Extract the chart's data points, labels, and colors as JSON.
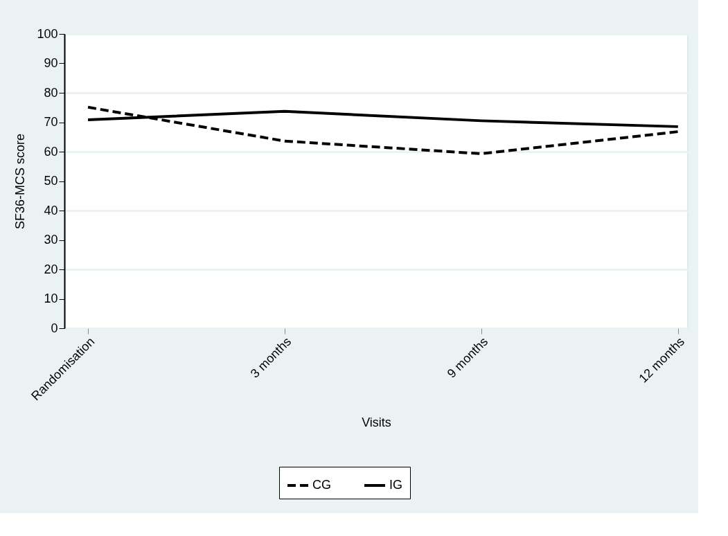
{
  "chart_data": {
    "type": "line",
    "xlabel": "Visits",
    "ylabel": "SF36-MCS score",
    "categories": [
      "Randomisation",
      "3 months",
      "9 months",
      "12 months"
    ],
    "series": [
      {
        "name": "CG",
        "color": "#000000",
        "line_style": "dashed",
        "values": [
          75.1,
          63.6,
          59.3,
          66.8
        ]
      },
      {
        "name": "IG",
        "color": "#000000",
        "line_style": "solid",
        "values": [
          70.8,
          73.7,
          70.5,
          68.5
        ]
      }
    ],
    "ylim": [
      0,
      100
    ],
    "yticks": [
      0,
      10,
      20,
      30,
      40,
      50,
      60,
      70,
      80,
      90,
      100
    ],
    "grid": "y",
    "legend": "bottom",
    "marker": "none"
  }
}
